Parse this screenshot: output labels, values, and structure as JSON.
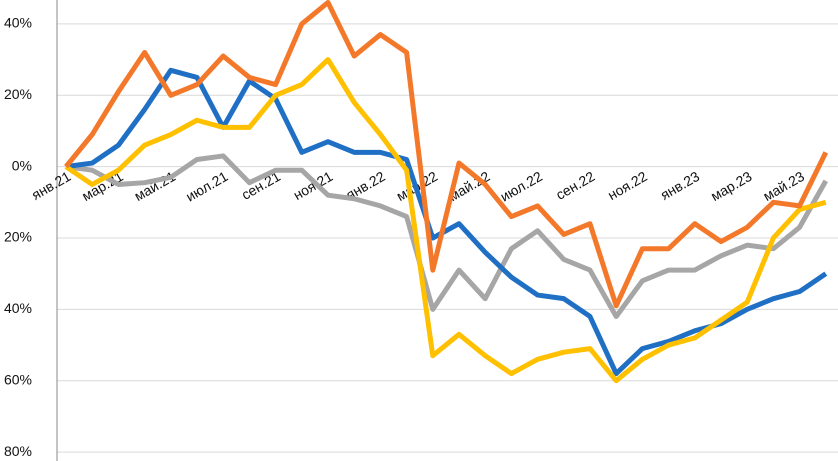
{
  "chart_data": {
    "type": "line",
    "categories": [
      "янв.21",
      null,
      "мар.21",
      null,
      "май.21",
      null,
      "июл.21",
      null,
      "сен.21",
      null,
      "ноя.21",
      null,
      "янв.22",
      null,
      "мар.22",
      null,
      "май.22",
      null,
      "июл.22",
      null,
      "сен.22",
      null,
      "ноя.22",
      null,
      "янв.23",
      null,
      "мар.23",
      null,
      "май.23",
      null
    ],
    "series": [
      {
        "color": "#a6a6a6",
        "values": [
          0,
          -1,
          -5,
          -4.5,
          -3,
          2,
          3,
          -4.5,
          -1,
          -1,
          -8,
          -9,
          -11,
          -14,
          -40,
          -29,
          -37,
          -23,
          -18,
          -26,
          -29,
          -42,
          -32,
          -29,
          -29,
          -25,
          -22,
          -23,
          -17,
          -4
        ]
      },
      {
        "color": "#1f6fc5",
        "values": [
          0,
          1,
          6,
          16,
          27,
          25,
          11,
          24,
          19,
          4,
          7,
          4,
          4,
          2,
          -20,
          -16,
          -24,
          -31,
          -36,
          -37,
          -42,
          -58,
          -51,
          -49,
          -46,
          -44,
          -40,
          -37,
          -35,
          -30
        ]
      },
      {
        "color": "#ffc000",
        "values": [
          0,
          -5,
          -1,
          6,
          9,
          13,
          11,
          11,
          20,
          23,
          30,
          18,
          9,
          -1,
          -53,
          -47,
          -53,
          -58,
          -54,
          -52,
          -51,
          -60,
          -54,
          -50,
          -48,
          -43,
          -38,
          -20,
          -12,
          -10
        ]
      },
      {
        "color": "#f4782a",
        "values": [
          0,
          9,
          21,
          32,
          20,
          23,
          31,
          25,
          23,
          40,
          46,
          31,
          37,
          32,
          -29,
          1,
          -5,
          -14,
          -11,
          -19,
          -16,
          -39,
          -23,
          -23,
          -16,
          -21,
          -17,
          -10,
          -11,
          4
        ]
      }
    ],
    "ylim": [
      -82.5,
      46.7
    ],
    "yticks": [
      {
        "value": 40,
        "label": "40%"
      },
      {
        "value": 20,
        "label": "20%"
      },
      {
        "value": 0,
        "label": "0%"
      },
      {
        "value": -20,
        "label": "20%"
      },
      {
        "value": -40,
        "label": "40%"
      },
      {
        "value": -60,
        "label": "60%"
      },
      {
        "value": -80,
        "label": "80%"
      }
    ],
    "grid": true
  }
}
